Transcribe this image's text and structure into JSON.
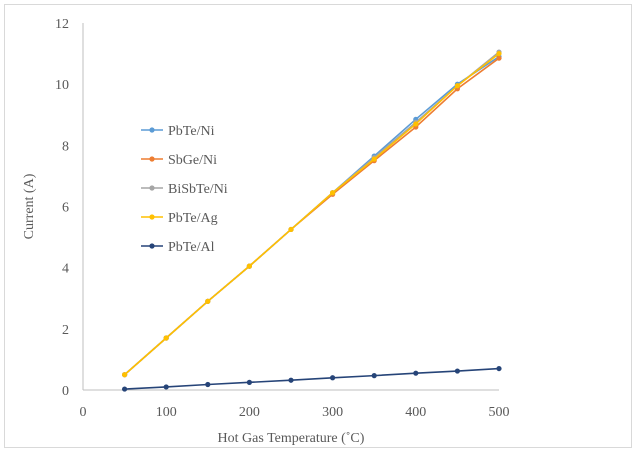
{
  "chart_data": {
    "type": "line",
    "title": "",
    "xlabel": "Hot Gas Temperature (˚C)",
    "ylabel": "Current (A)",
    "xlim": [
      0,
      500
    ],
    "ylim": [
      0,
      12
    ],
    "xticks": [
      0,
      100,
      200,
      300,
      400,
      500
    ],
    "yticks": [
      0,
      2,
      4,
      6,
      8,
      10,
      12
    ],
    "grid": false,
    "legend_position": "left",
    "series": [
      {
        "name": "PbTe/Ni",
        "color": "#5b9bd5",
        "x": [
          50,
          100,
          150,
          200,
          250,
          300,
          350,
          400,
          450,
          500
        ],
        "y": [
          0.5,
          1.7,
          2.9,
          4.05,
          5.25,
          6.45,
          7.65,
          8.85,
          10.0,
          10.9
        ]
      },
      {
        "name": "SbGe/Ni",
        "color": "#ed7d31",
        "x": [
          50,
          100,
          150,
          200,
          250,
          300,
          350,
          400,
          450,
          500
        ],
        "y": [
          0.5,
          1.7,
          2.9,
          4.05,
          5.25,
          6.4,
          7.5,
          8.6,
          9.85,
          10.85
        ]
      },
      {
        "name": "BiSbTe/Ni",
        "color": "#a5a5a5",
        "x": [
          50,
          100,
          150,
          200,
          250,
          300,
          350,
          400,
          450,
          500
        ],
        "y": [
          0.5,
          1.7,
          2.9,
          4.05,
          5.25,
          6.45,
          7.6,
          8.75,
          9.95,
          11.05
        ]
      },
      {
        "name": "PbTe/Ag",
        "color": "#ffc000",
        "x": [
          50,
          100,
          150,
          200,
          250,
          300,
          350,
          400,
          450,
          500
        ],
        "y": [
          0.5,
          1.7,
          2.9,
          4.05,
          5.25,
          6.45,
          7.55,
          8.7,
          9.95,
          11.0
        ]
      },
      {
        "name": "PbTe/Al",
        "color": "#264478",
        "x": [
          50,
          100,
          150,
          200,
          250,
          300,
          350,
          400,
          450,
          500
        ],
        "y": [
          0.03,
          0.1,
          0.18,
          0.25,
          0.32,
          0.4,
          0.47,
          0.55,
          0.62,
          0.7
        ]
      }
    ]
  }
}
